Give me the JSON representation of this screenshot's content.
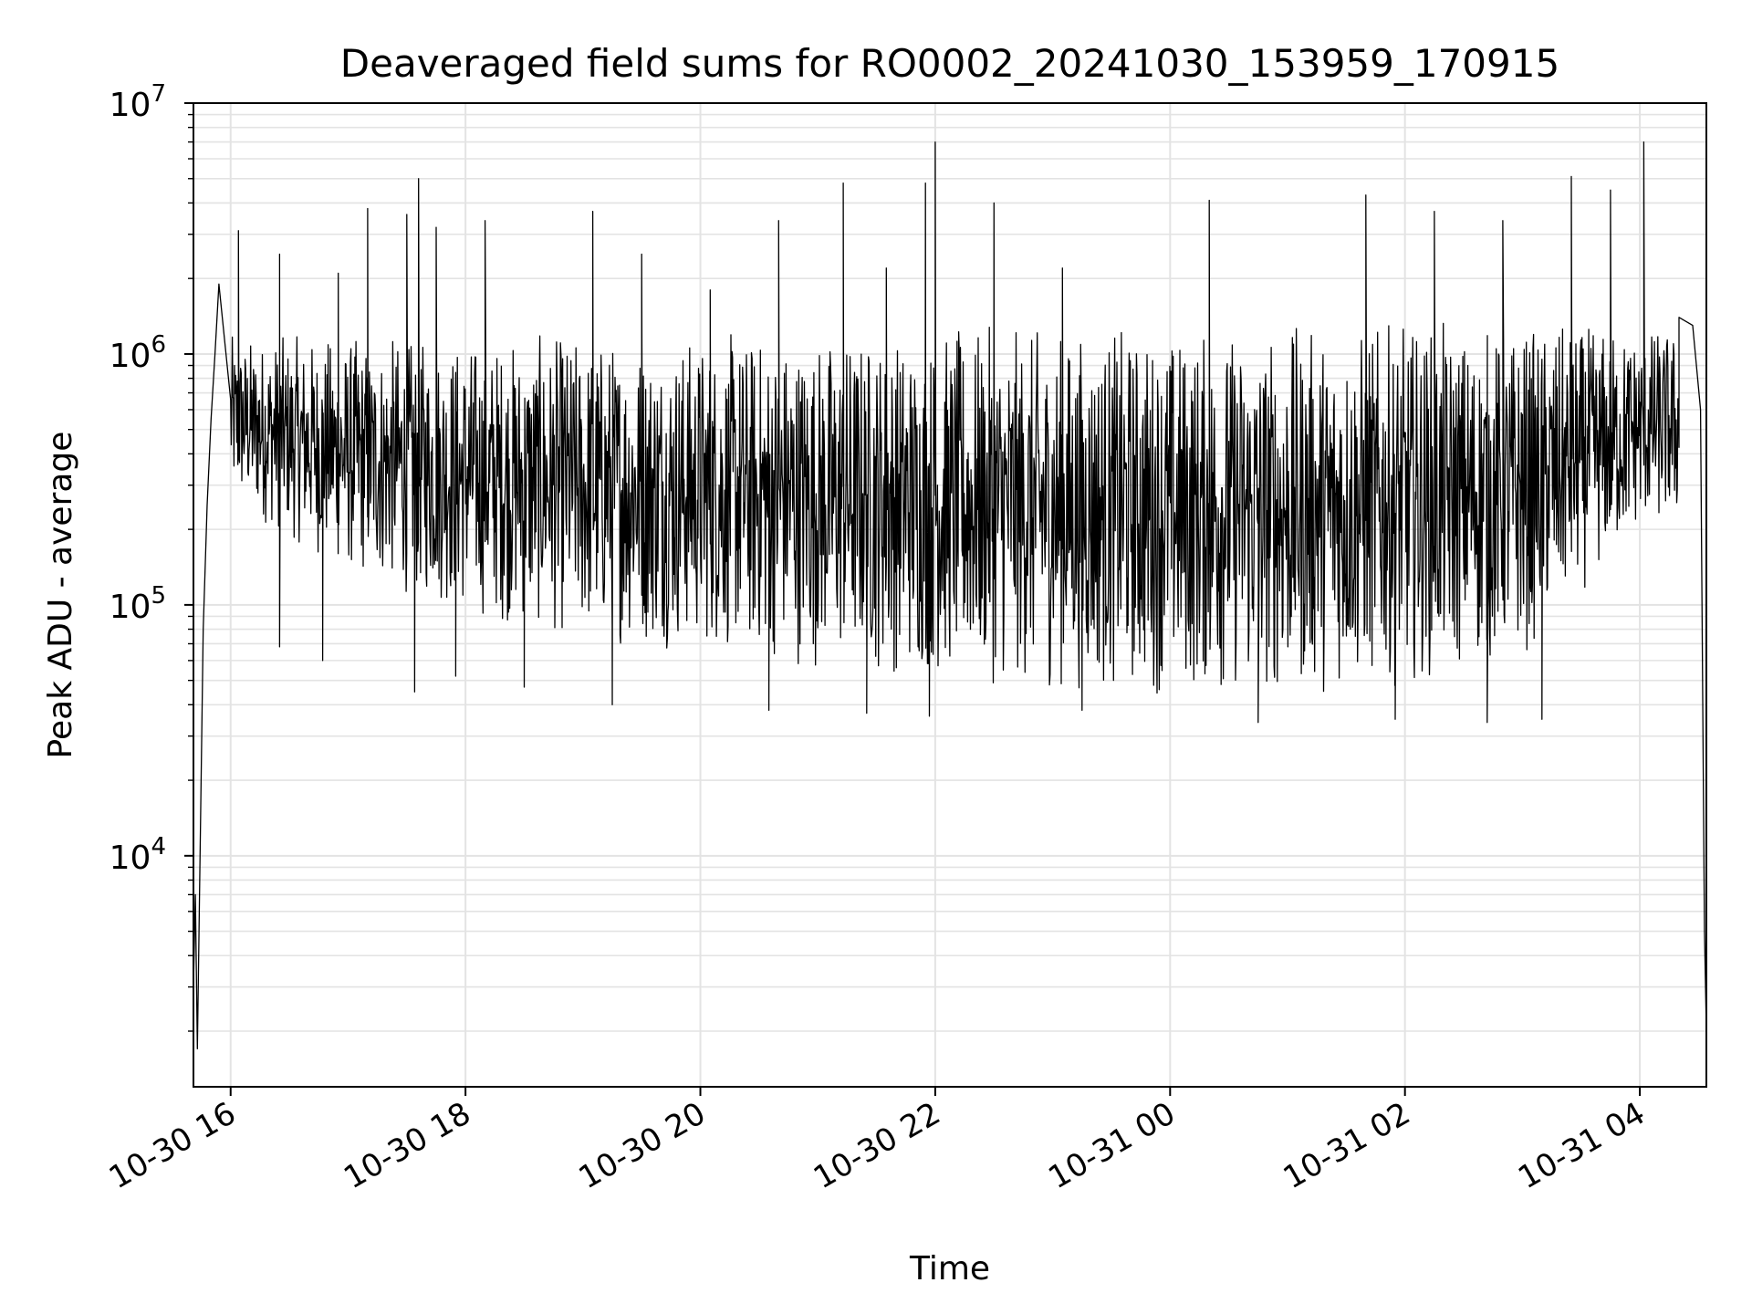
{
  "chart_data": {
    "type": "line",
    "title": "Deaveraged field sums for RO0002_20241030_153959_170915",
    "xlabel": "Time",
    "ylabel": "Peak ADU - average",
    "yscale": "log",
    "ylim": [
      1200,
      10000000
    ],
    "xlim": [
      "2024-10-30 15:41",
      "2024-10-31 04:34"
    ],
    "grid": true,
    "line_color": "#000000",
    "grid_color": "#e3e3e3",
    "x_ticks": [
      {
        "value": "2024-10-30 16:00",
        "label": "10-30 16"
      },
      {
        "value": "2024-10-30 18:00",
        "label": "10-30 18"
      },
      {
        "value": "2024-10-30 20:00",
        "label": "10-30 20"
      },
      {
        "value": "2024-10-30 22:00",
        "label": "10-30 22"
      },
      {
        "value": "2024-10-31 00:00",
        "label": "10-31 00"
      },
      {
        "value": "2024-10-31 02:00",
        "label": "10-31 02"
      },
      {
        "value": "2024-10-31 04:00",
        "label": "10-31 04"
      }
    ],
    "y_ticks": [
      {
        "value": 10000,
        "base": "10",
        "exp": "4"
      },
      {
        "value": 100000,
        "base": "10",
        "exp": "5"
      },
      {
        "value": 1000000,
        "base": "10",
        "exp": "6"
      },
      {
        "value": 10000000,
        "base": "10",
        "exp": "7"
      }
    ],
    "envelope_description": "dense noisy series; key anchor points below (x as date, y in ADU)",
    "anchors": [
      {
        "x": "2024-10-30 15:41",
        "y": 3000
      },
      {
        "x": "2024-10-30 15:42",
        "y": 7000
      },
      {
        "x": "2024-10-30 15:43",
        "y": 1700
      },
      {
        "x": "2024-10-30 15:44",
        "y": 6000
      },
      {
        "x": "2024-10-30 15:46",
        "y": 80000
      },
      {
        "x": "2024-10-30 15:48",
        "y": 250000
      },
      {
        "x": "2024-10-30 15:50",
        "y": 550000
      },
      {
        "x": "2024-10-30 15:52",
        "y": 1000000
      },
      {
        "x": "2024-10-30 15:54",
        "y": 1900000
      },
      {
        "x": "2024-10-30 16:00",
        "y": 1200000
      },
      {
        "x": "2024-10-31 04:20",
        "y": 1400000
      },
      {
        "x": "2024-10-31 04:27",
        "y": 1300000
      },
      {
        "x": "2024-10-31 04:31",
        "y": 600000
      },
      {
        "x": "2024-10-31 04:33",
        "y": 5000
      },
      {
        "x": "2024-10-31 04:34",
        "y": 2000
      }
    ],
    "upper_band": [
      {
        "x": "2024-10-30 16:00",
        "y": 1200000
      },
      {
        "x": "2024-10-30 18:00",
        "y": 1200000
      },
      {
        "x": "2024-10-30 20:00",
        "y": 1250000
      },
      {
        "x": "2024-10-30 22:00",
        "y": 1300000
      },
      {
        "x": "2024-10-31 00:00",
        "y": 1300000
      },
      {
        "x": "2024-10-31 02:00",
        "y": 1350000
      },
      {
        "x": "2024-10-31 04:00",
        "y": 1300000
      }
    ],
    "lower_band": [
      {
        "x": "2024-10-30 16:00",
        "y": 250000
      },
      {
        "x": "2024-10-30 17:00",
        "y": 130000
      },
      {
        "x": "2024-10-30 18:00",
        "y": 90000
      },
      {
        "x": "2024-10-30 19:00",
        "y": 70000
      },
      {
        "x": "2024-10-30 20:00",
        "y": 65000
      },
      {
        "x": "2024-10-30 21:00",
        "y": 55000
      },
      {
        "x": "2024-10-30 22:00",
        "y": 50000
      },
      {
        "x": "2024-10-30 23:00",
        "y": 45000
      },
      {
        "x": "2024-10-31 00:00",
        "y": 43000
      },
      {
        "x": "2024-10-31 01:00",
        "y": 42000
      },
      {
        "x": "2024-10-31 02:00",
        "y": 48000
      },
      {
        "x": "2024-10-31 03:00",
        "y": 60000
      },
      {
        "x": "2024-10-31 04:00",
        "y": 200000
      }
    ],
    "spikes": [
      {
        "x": "2024-10-30 15:58",
        "y": 2900000
      },
      {
        "x": "2024-10-30 16:04",
        "y": 3100000
      },
      {
        "x": "2024-10-30 16:25",
        "y": 2500000
      },
      {
        "x": "2024-10-30 16:55",
        "y": 2100000
      },
      {
        "x": "2024-10-30 17:10",
        "y": 3800000
      },
      {
        "x": "2024-10-30 17:30",
        "y": 3600000
      },
      {
        "x": "2024-10-30 17:36",
        "y": 5000000
      },
      {
        "x": "2024-10-30 17:45",
        "y": 3200000
      },
      {
        "x": "2024-10-30 18:10",
        "y": 3400000
      },
      {
        "x": "2024-10-30 19:05",
        "y": 3700000
      },
      {
        "x": "2024-10-30 19:30",
        "y": 2500000
      },
      {
        "x": "2024-10-30 20:05",
        "y": 1800000
      },
      {
        "x": "2024-10-30 20:40",
        "y": 3400000
      },
      {
        "x": "2024-10-30 21:13",
        "y": 4800000
      },
      {
        "x": "2024-10-30 21:35",
        "y": 2200000
      },
      {
        "x": "2024-10-30 21:55",
        "y": 4800000
      },
      {
        "x": "2024-10-30 22:00",
        "y": 7000000
      },
      {
        "x": "2024-10-30 22:30",
        "y": 4000000
      },
      {
        "x": "2024-10-30 23:05",
        "y": 2200000
      },
      {
        "x": "2024-10-31 00:20",
        "y": 4100000
      },
      {
        "x": "2024-10-31 01:40",
        "y": 4300000
      },
      {
        "x": "2024-10-31 02:15",
        "y": 3700000
      },
      {
        "x": "2024-10-31 02:50",
        "y": 3400000
      },
      {
        "x": "2024-10-31 03:25",
        "y": 5100000
      },
      {
        "x": "2024-10-31 03:45",
        "y": 4500000
      },
      {
        "x": "2024-10-31 04:02",
        "y": 7000000
      }
    ],
    "dips": [
      {
        "x": "2024-10-30 16:25",
        "y": 68000
      },
      {
        "x": "2024-10-30 16:47",
        "y": 60000
      },
      {
        "x": "2024-10-30 17:34",
        "y": 45000
      },
      {
        "x": "2024-10-30 17:55",
        "y": 52000
      },
      {
        "x": "2024-10-30 18:30",
        "y": 47000
      },
      {
        "x": "2024-10-30 19:15",
        "y": 40000
      },
      {
        "x": "2024-10-30 20:35",
        "y": 38000
      },
      {
        "x": "2024-10-30 21:25",
        "y": 37000
      },
      {
        "x": "2024-10-30 21:57",
        "y": 36000
      },
      {
        "x": "2024-10-30 23:15",
        "y": 38000
      },
      {
        "x": "2024-10-31 00:45",
        "y": 34000
      },
      {
        "x": "2024-10-31 01:55",
        "y": 35000
      },
      {
        "x": "2024-10-31 02:42",
        "y": 34000
      },
      {
        "x": "2024-10-31 03:10",
        "y": 35000
      }
    ]
  }
}
